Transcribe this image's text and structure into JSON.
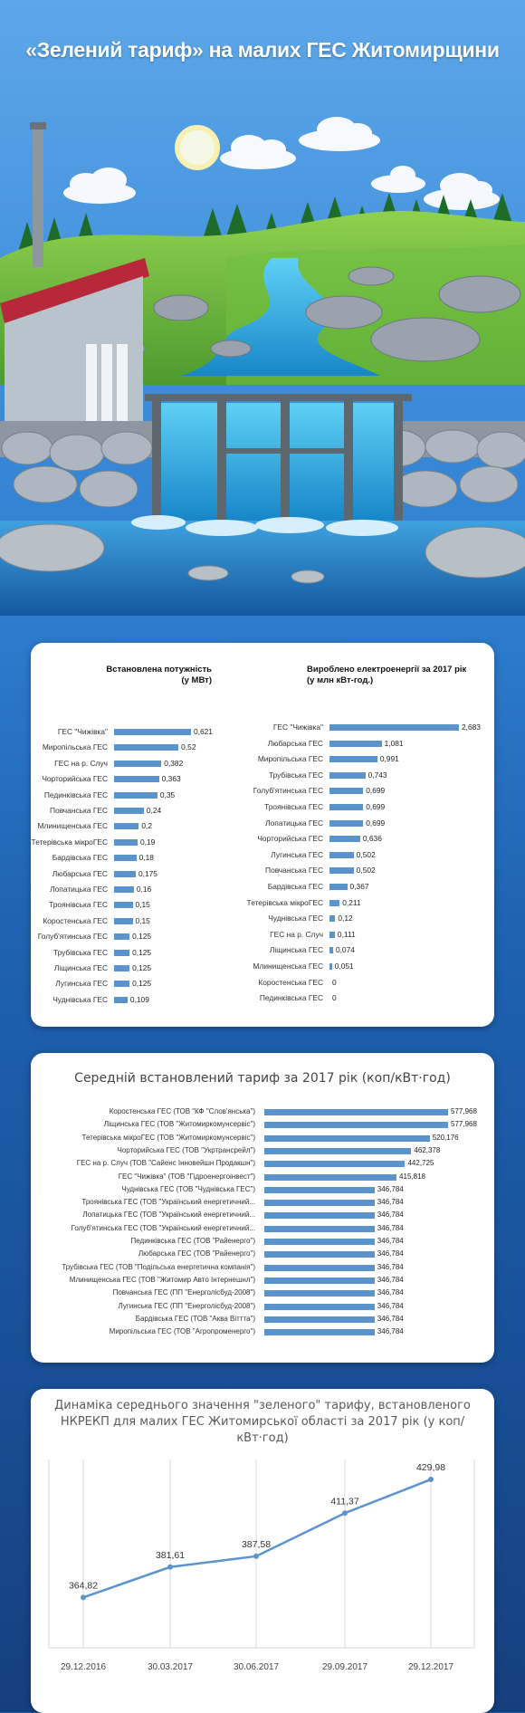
{
  "title": "«Зелений тариф» на малих ГЕС Житомирщини",
  "colors": {
    "bar": "#5b93cd",
    "line": "#5b93cd",
    "background": "#1f64b4"
  },
  "chart_data": [
    {
      "type": "bar",
      "title": "Встановлена потужність (у МВт)",
      "categories": [
        "ГЕС \"Чижівка\"",
        "Миропільська ГЕС",
        "ГЕС на р. Случ",
        "Чорторийська ГЕС",
        "Пединківська ГЕС",
        "Повчанська ГЕС",
        "Млинищенська ГЕС",
        "Тетерівська мікроГЕС",
        "Бардівська ГЕС",
        "Любарська ГЕС",
        "Лопатицька ГЕС",
        "Троянівська ГЕС",
        "Коростенська ГЕС",
        "Голуб'ятинська ГЕС",
        "Трубівська ГЕС",
        "Ліщинська ГЕС",
        "Лугинська ГЕС",
        "Чуднівська ГЕС"
      ],
      "values": [
        0.621,
        0.52,
        0.382,
        0.363,
        0.35,
        0.24,
        0.2,
        0.19,
        0.18,
        0.175,
        0.16,
        0.15,
        0.15,
        0.125,
        0.125,
        0.125,
        0.125,
        0.109
      ],
      "labels": [
        "0,621",
        "0,52",
        "0,382",
        "0,363",
        "0,35",
        "0,24",
        "0,2",
        "0,19",
        "0,18",
        "0,175",
        "0,16",
        "0,15",
        "0,15",
        "0,125",
        "0,125",
        "0,125",
        "0,125",
        "0,109"
      ]
    },
    {
      "type": "bar",
      "title": "Вироблено електроенергії за 2017 рік (у млн кВт-год.)",
      "categories": [
        "ГЕС \"Чижівка\"",
        "Любарська ГЕС",
        "Миропільська ГЕС",
        "Трубівська ГЕС",
        "Голуб'ятинська ГЕС",
        "Троянівська ГЕС",
        "Лопатицька ГЕС",
        "Чорторийська ГЕС",
        "Лугинська ГЕС",
        "Повчанська ГЕС",
        "Бардівська ГЕС",
        "Тетерівська мікроГЕС",
        "Чуднівська ГЕС",
        "ГЕС на р. Случ",
        "Ліщинська ГЕС",
        "Млинищенська ГЕС",
        "Коростенська ГЕС",
        "Пединківська ГЕС"
      ],
      "values": [
        2.683,
        1.081,
        0.991,
        0.743,
        0.699,
        0.699,
        0.699,
        0.636,
        0.502,
        0.502,
        0.367,
        0.211,
        0.12,
        0.111,
        0.074,
        0.051,
        0,
        0
      ],
      "labels": [
        "2,683",
        "1,081",
        "0,991",
        "0,743",
        "0,699",
        "0,699",
        "0,699",
        "0,636",
        "0,502",
        "0,502",
        "0,367",
        "0,211",
        "0,12",
        "0,111",
        "0,074",
        "0,051",
        "0",
        "0"
      ]
    },
    {
      "type": "bar",
      "title": "Середній встановлений тариф за 2017 рік  (коп/кВт·год)",
      "categories": [
        "Коростенська ГЕС (ТОВ \"КФ \"Слов'янська\")",
        "Ліщинська ГЕС (ТОВ \"Житомиркомунсервіс\")",
        "Тетерівська мікроГЕС (ТОВ \"Житомиркомунсервіс\")",
        "Чорторийська ГЕС (ТОВ \"Укртрансрейл\")",
        "ГЕС на р. Случ (ТОВ \"Сайенс Інновейшн Продакшн\")",
        "ГЕС \"Чижівка\" (ТОВ \"Гідроенергоінвест\")",
        "Чуднівська ГЕС (ТОВ \"Чуднівська ГЕС\")",
        "Троянівська ГЕС (ТОВ \"Український енергетичний...",
        "Лопатицька ГЕС (ТОВ \"Український енергетичний...",
        "Голуб'ятинська ГЕС (ТОВ \"Український енергетичний...",
        "Пединківська ГЕС (ТОВ \"Райенерго\")",
        "Любарська ГЕС (ТОВ \"Райенерго\")",
        "Трубівська ГЕС (ТОВ \"Подільська енергетична компанія\")",
        "Млинищенська ГЕС (ТОВ \"Житомир Авто Інтернешнл\")",
        "Повчанська ГЕС (ПП \"Енерголісбуд-2008\")",
        "Лугинська ГЕС (ПП \"Енерголісбуд-2008\")",
        "Бардівська ГЕС (ТОВ \"Аква Віттта\")",
        "Миропільська ГЕС (ТОВ \"Агропроменерго\")"
      ],
      "values": [
        577.968,
        577.968,
        520.176,
        462.378,
        442.725,
        415.818,
        346.784,
        346.784,
        346.784,
        346.784,
        346.784,
        346.784,
        346.784,
        346.784,
        346.784,
        346.784,
        346.784,
        346.784
      ],
      "labels": [
        "577,968",
        "577,968",
        "520,176",
        "462,378",
        "442,725",
        "415,818",
        "346,784",
        "346,784",
        "346,784",
        "346,784",
        "346,784",
        "346,784",
        "346,784",
        "346,784",
        "346,784",
        "346,784",
        "346,784",
        "346,784"
      ]
    },
    {
      "type": "line",
      "title": "Динаміка середнього значення \"зеленого\" тарифу, встановленого НКРЕКП для малих ГЕС Житомирської області за 2017 рік (у коп/кВт·год)",
      "x": [
        "29.12.2016",
        "30.03.2017",
        "30.06.2017",
        "29.09.2017",
        "29.12.2017"
      ],
      "values": [
        364.82,
        381.61,
        387.58,
        411.37,
        429.98
      ],
      "labels": [
        "364,82",
        "381,61",
        "387,58",
        "411,37",
        "429,98"
      ],
      "grid": "vertical"
    }
  ]
}
